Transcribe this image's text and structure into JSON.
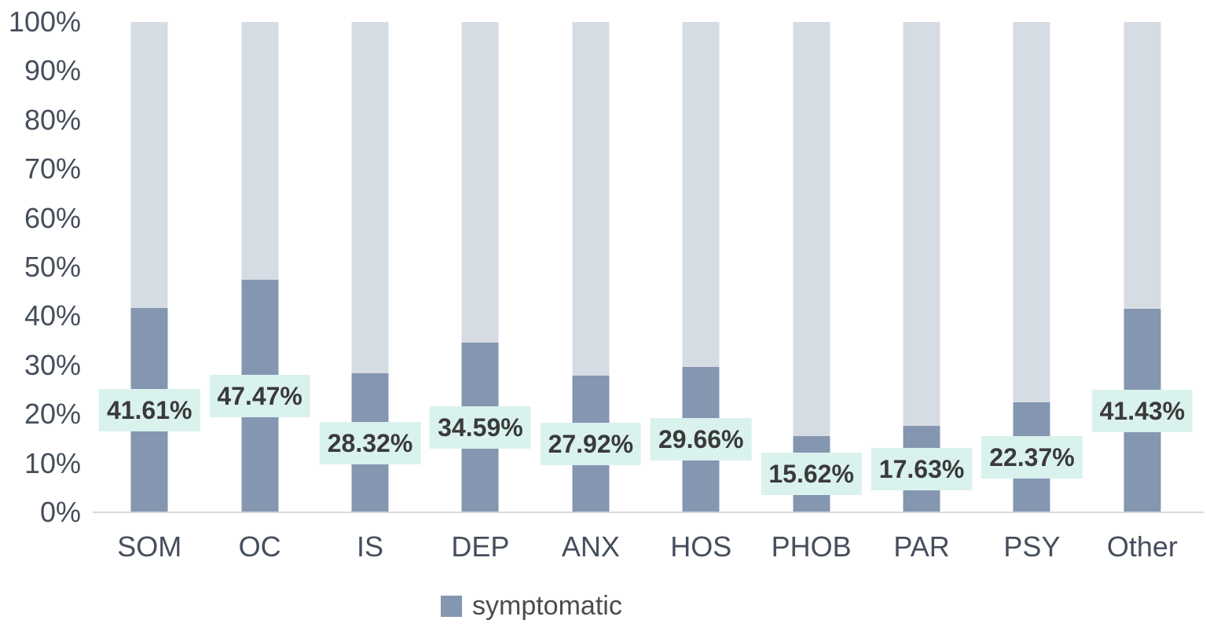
{
  "chart_data": {
    "type": "bar",
    "subtype": "100-percent-stacked-column",
    "title": "",
    "xlabel": "",
    "ylabel": "",
    "categories": [
      "SOM",
      "OC",
      "IS",
      "DEP",
      "ANX",
      "HOS",
      "PHOB",
      "PAR",
      "PSY",
      "Other"
    ],
    "series": [
      {
        "name": "symptomatic",
        "values": [
          41.61,
          47.47,
          28.32,
          34.59,
          27.92,
          29.66,
          15.62,
          17.63,
          22.37,
          41.43
        ]
      }
    ],
    "value_labels": [
      "41.61%",
      "47.47%",
      "28.32%",
      "34.59%",
      "27.92%",
      "29.66%",
      "15.62%",
      "17.63%",
      "22.37%",
      "41.43%"
    ],
    "remainder_to_100_percent": true,
    "ylim": [
      0,
      100
    ],
    "y_ticks": [
      "100%",
      "90%",
      "80%",
      "70%",
      "60%",
      "50%",
      "40%",
      "30%",
      "20%",
      "10%",
      "0%"
    ],
    "grid": false,
    "legend": {
      "position": "bottom",
      "entries": [
        {
          "label": "symptomatic",
          "color": "#8496b0"
        }
      ]
    },
    "colors": {
      "bar_fill": "#8496b0",
      "bar_remainder": "#d6dce4",
      "label_bg": "#daf2ee",
      "label_text": "#3a3a3a",
      "axis_text": "#454e5c",
      "axis_line": "#d9d9d9"
    }
  }
}
